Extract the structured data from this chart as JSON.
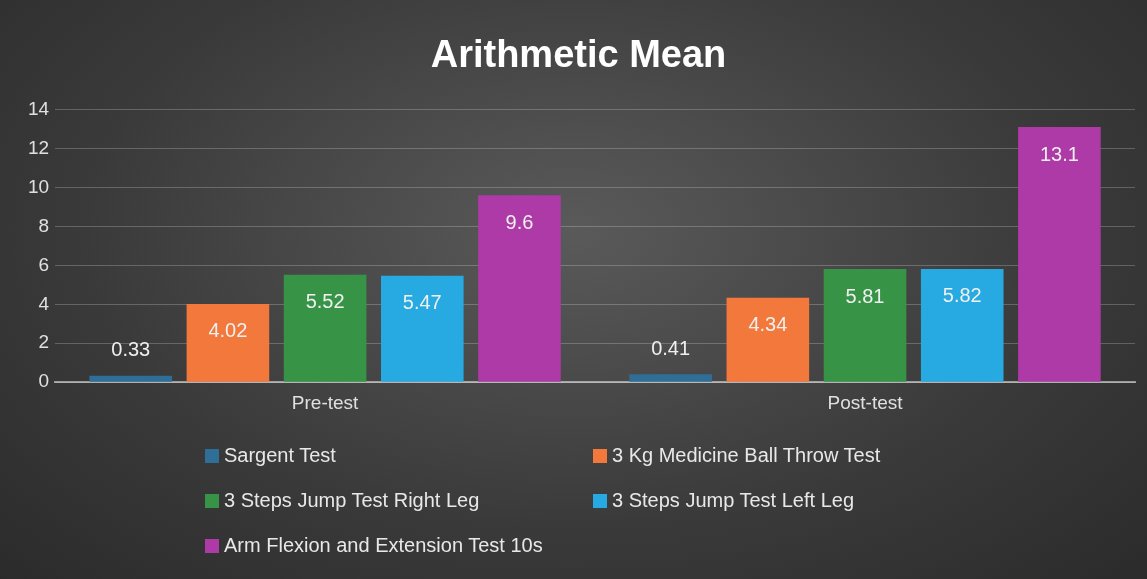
{
  "chart_data": {
    "type": "bar",
    "title": "Arithmetic Mean",
    "categories": [
      "Pre-test",
      "Post-test"
    ],
    "series": [
      {
        "name": "Sargent Test",
        "color": "#2f6e96",
        "values": [
          0.33,
          0.41
        ]
      },
      {
        "name": "3 Kg Medicine Ball Throw Test",
        "color": "#f2783c",
        "values": [
          4.02,
          4.34
        ]
      },
      {
        "name": "3 Steps Jump Test Right Leg",
        "color": "#379447",
        "values": [
          5.52,
          5.81
        ]
      },
      {
        "name": "3 Steps Jump Test Left Leg",
        "color": "#27a9e1",
        "values": [
          5.47,
          5.82
        ]
      },
      {
        "name": "Arm Flexion and Extension Test 10s",
        "color": "#ad3aa6",
        "values": [
          9.6,
          13.1
        ]
      }
    ],
    "ylim": [
      0,
      14
    ],
    "yticks": [
      0,
      2,
      4,
      6,
      8,
      10,
      12,
      14
    ],
    "grid": "y",
    "legend": "bottom",
    "data_labels": true
  }
}
